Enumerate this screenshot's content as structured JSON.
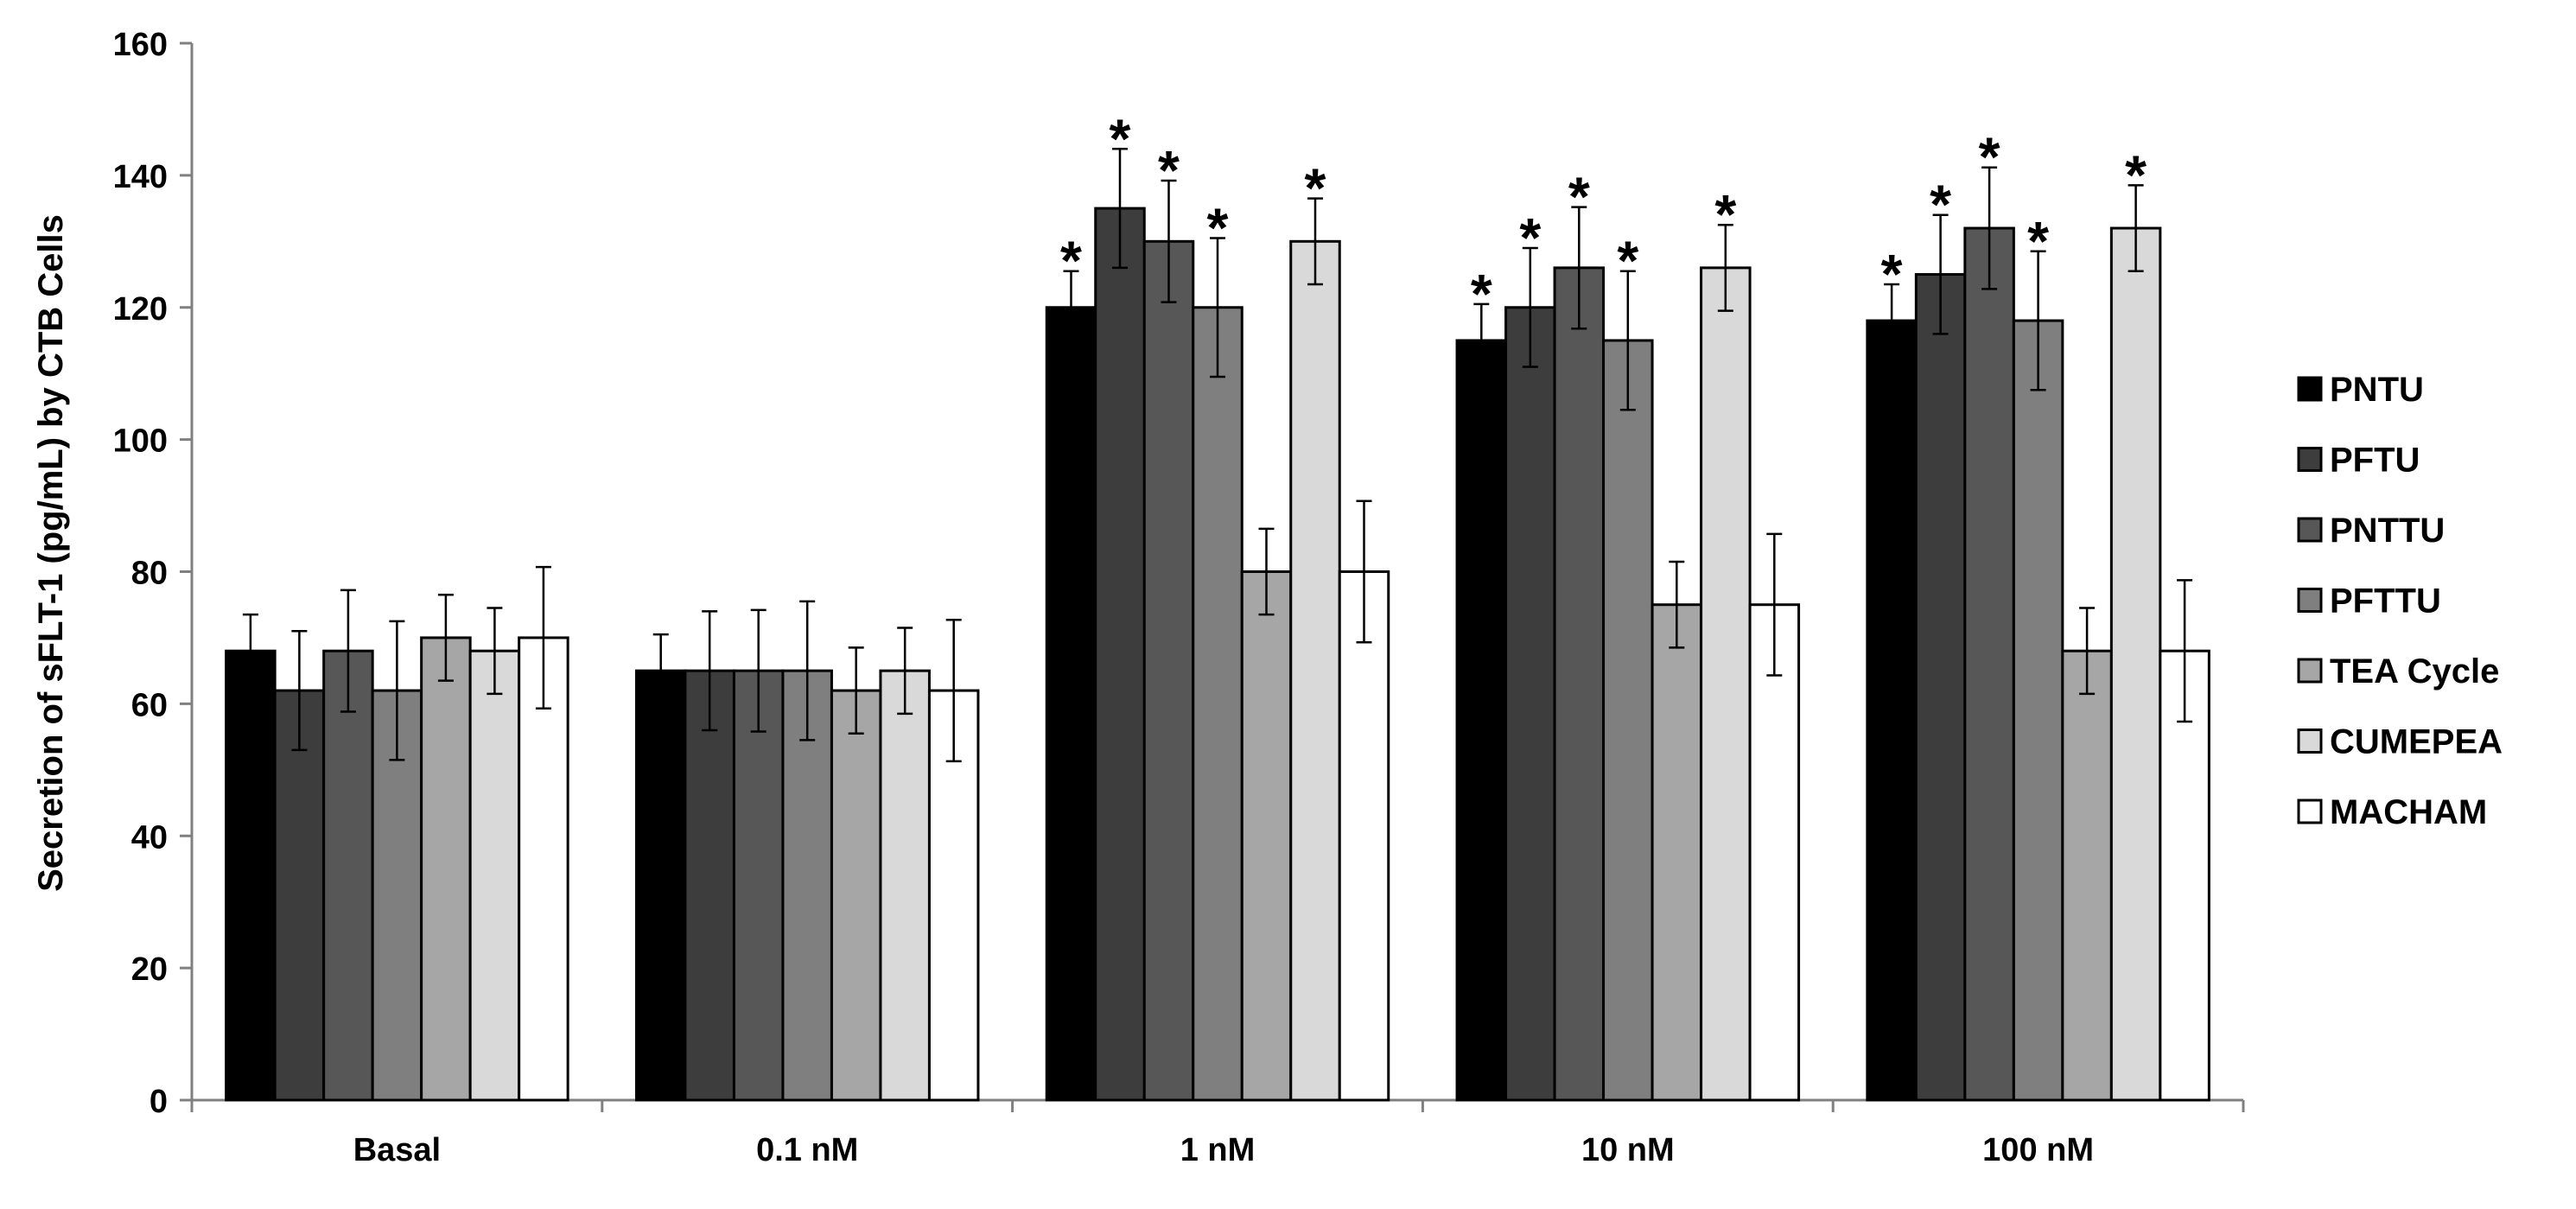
{
  "chart_data": {
    "type": "bar",
    "title": "",
    "xlabel": "",
    "ylabel": "Secretion of sFLT-1 (pg/mL) by CTB Cells",
    "ylim": [
      0,
      160
    ],
    "yticks": [
      "0",
      "20",
      "40",
      "60",
      "80",
      "100",
      "120",
      "140",
      "160"
    ],
    "categories": [
      "Basal",
      "0.1 nM",
      "1 nM",
      "10 nM",
      "100 nM"
    ],
    "legend_position": "right",
    "significance_marker": "*",
    "series": [
      {
        "name": "PNTU",
        "color": "#000000",
        "values": [
          68,
          65,
          120,
          115,
          118
        ],
        "errors": [
          5.5,
          5.5,
          5.5,
          5.5,
          5.5
        ],
        "significant": [
          false,
          false,
          true,
          true,
          true
        ]
      },
      {
        "name": "PFTU",
        "color": "#3d3d3d",
        "values": [
          62,
          65,
          135,
          120,
          125
        ],
        "errors": [
          9,
          9,
          9,
          9,
          9
        ],
        "significant": [
          false,
          false,
          true,
          true,
          true
        ]
      },
      {
        "name": "PNTTU",
        "color": "#575757",
        "values": [
          68,
          65,
          130,
          126,
          132
        ],
        "errors": [
          9.2,
          9.2,
          9.2,
          9.2,
          9.2
        ],
        "significant": [
          false,
          false,
          true,
          true,
          true
        ]
      },
      {
        "name": "PFTTU",
        "color": "#7f7f7f",
        "values": [
          62,
          65,
          120,
          115,
          118
        ],
        "errors": [
          10.5,
          10.5,
          10.5,
          10.5,
          10.5
        ],
        "significant": [
          false,
          false,
          true,
          true,
          true
        ]
      },
      {
        "name": "TEA Cycle",
        "color": "#a6a6a6",
        "values": [
          70,
          62,
          80,
          75,
          68
        ],
        "errors": [
          6.5,
          6.5,
          6.5,
          6.5,
          6.5
        ],
        "significant": [
          false,
          false,
          false,
          false,
          false
        ]
      },
      {
        "name": "CUMEPEA",
        "color": "#d9d9d9",
        "values": [
          68,
          65,
          130,
          126,
          132
        ],
        "errors": [
          6.5,
          6.5,
          6.5,
          6.5,
          6.5
        ],
        "significant": [
          false,
          false,
          true,
          true,
          true
        ]
      },
      {
        "name": "MACHAM",
        "color": "#ffffff",
        "values": [
          70,
          62,
          80,
          75,
          68
        ],
        "errors": [
          10.7,
          10.7,
          10.7,
          10.7,
          10.7
        ],
        "significant": [
          false,
          false,
          false,
          false,
          false
        ]
      }
    ]
  }
}
